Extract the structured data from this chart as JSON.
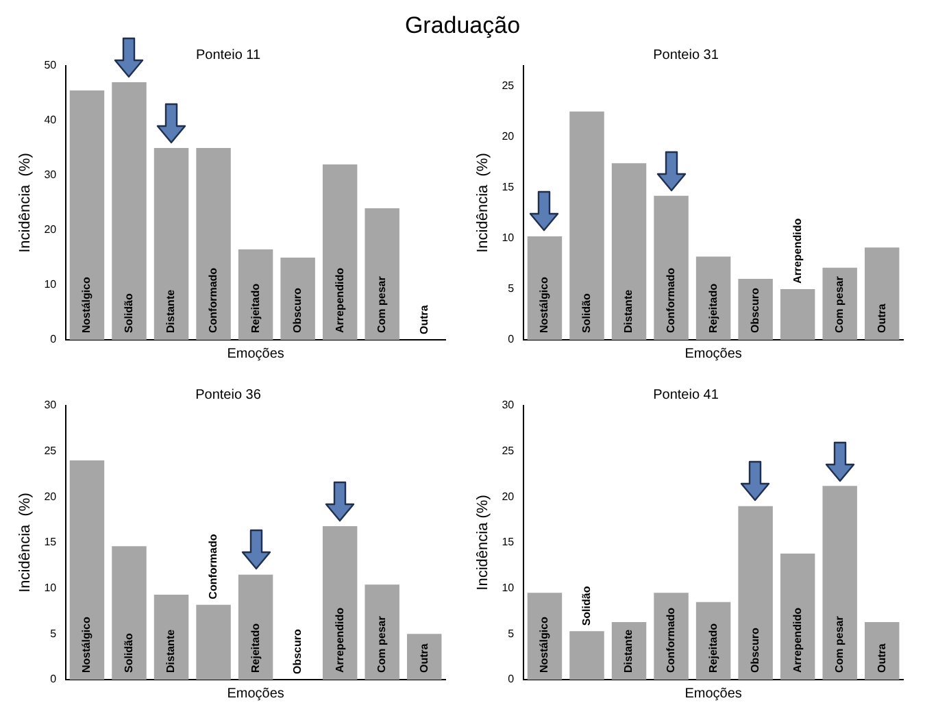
{
  "chart_data": [
    {
      "type": "bar",
      "title": "Ponteio 11",
      "xlabel": "Emoções",
      "ylabel": "Incidência  (%)",
      "annotations": [
        "Graduação"
      ],
      "categories": [
        "Nostálgico",
        "Solidão",
        "Distante",
        "Conformado",
        "Rejeitado",
        "Obscuro",
        "Arrependido",
        "Com pesar",
        "Outra"
      ],
      "values": [
        45.5,
        47,
        35,
        35,
        16.5,
        15,
        32,
        24,
        0
      ],
      "color": "#a6a6a6",
      "ylim": [
        0,
        50
      ],
      "yticks": [
        0,
        10,
        20,
        30,
        40,
        50
      ],
      "grid": false,
      "legend": false
    },
    {
      "type": "bar",
      "title": "Ponteio 31",
      "xlabel": "Emoções",
      "ylabel": "Incidência  (%)",
      "categories": [
        "Nostálgico",
        "Solidão",
        "Distante",
        "Conformado",
        "Rejeitado",
        "Obscuro",
        "Arrependido",
        "Com pesar",
        "Outra"
      ],
      "values": [
        10.2,
        22.5,
        17.4,
        14.2,
        8.2,
        6,
        5,
        7.1,
        9.1
      ],
      "color": "#a6a6a6",
      "ylim": [
        0,
        27
      ],
      "yticks": [
        0,
        5,
        10,
        15,
        20,
        25
      ],
      "grid": false,
      "legend": false
    },
    {
      "type": "bar",
      "title": "Ponteio 36",
      "xlabel": "Emoções",
      "ylabel": "Incidência  (%)",
      "categories": [
        "Nostálgico",
        "Solidão",
        "Distante",
        "Conformado",
        "Rejeitado",
        "Obscuro",
        "Arrependido",
        "Com pesar",
        "Outra"
      ],
      "values": [
        24,
        14.6,
        9.3,
        8.2,
        11.5,
        0,
        16.8,
        10.4,
        5
      ],
      "color": "#a6a6a6",
      "ylim": [
        0,
        30
      ],
      "yticks": [
        0,
        5,
        10,
        15,
        20,
        25,
        30
      ],
      "grid": false,
      "legend": false
    },
    {
      "type": "bar",
      "title": "Ponteio 41",
      "xlabel": "Emoções",
      "ylabel": "Incidência (%)",
      "categories": [
        "Nostálgico",
        "Solidão",
        "Distante",
        "Conformado",
        "Rejeitado",
        "Obscuro",
        "Arrependido",
        "Com pesar",
        "Outra"
      ],
      "values": [
        9.5,
        5.3,
        6.3,
        9.5,
        8.5,
        19,
        13.8,
        21.2,
        6.3
      ],
      "color": "#a6a6a6",
      "ylim": [
        0,
        30
      ],
      "yticks": [
        0,
        5,
        10,
        15,
        20,
        25,
        30
      ],
      "grid": false,
      "legend": false
    }
  ]
}
